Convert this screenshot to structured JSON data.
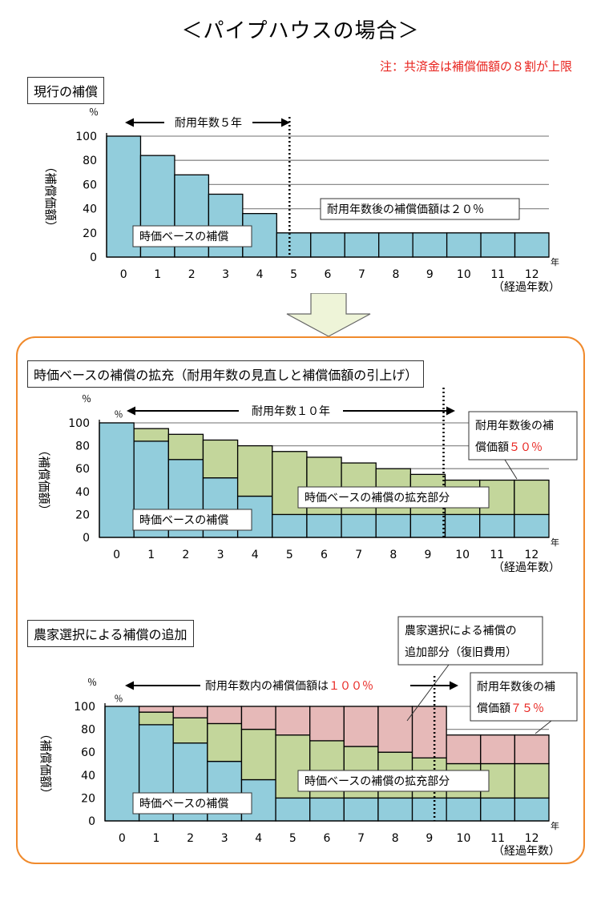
{
  "title": "＜パイプハウスの場合＞",
  "note": "注：共済金は補償価額の８割が上限",
  "arrow_color": "#eef4d8",
  "colors": {
    "base": "#92cddc",
    "expansion": "#c3d69b",
    "added": "#e6b9b8",
    "panel": "#f08a2c",
    "accent": "#e8231e"
  },
  "x_categories": [
    "0",
    "1",
    "2",
    "3",
    "4",
    "5",
    "6",
    "7",
    "8",
    "9",
    "10",
    "11",
    "12"
  ],
  "y_ticks": [
    "0",
    "20",
    "40",
    "60",
    "80",
    "100"
  ],
  "sections": {
    "current": {
      "title": "現行の補償"
    },
    "expansion": {
      "title": "時価ベースの補償の拡充（耐用年数の見直しと補償価額の引上げ）"
    },
    "added": {
      "title": "農家選択による補償の追加"
    }
  },
  "labels": {
    "percent": "％",
    "year_unit": "年",
    "elapsed": "（経過年数）",
    "ylabel": "（補償価額）",
    "base_legend": "時価ベースの補償",
    "expansion_legend": "時価ベースの補償の拡充部分",
    "life5": "耐用年数５年",
    "life10": "耐用年数１０年",
    "after20": "耐用年数後の補償価額は２０％",
    "after50_a": "耐用年数後の補",
    "after50_b": "償価額",
    "after50_val": "５０％",
    "within_text": "耐用年数内の補償価額は",
    "within_val": "１００％",
    "farmer_a": "農家選択による補償の",
    "farmer_b": "追加部分（復旧費用）",
    "after75_a": "耐用年数後の補",
    "after75_b": "償価額",
    "after75_val": "７５％"
  },
  "chart_data": [
    {
      "type": "bar",
      "title": "現行の補償",
      "xlabel": "（経過年数）",
      "ylabel": "（補償価額）",
      "categories": [
        "0",
        "1",
        "2",
        "3",
        "4",
        "5",
        "6",
        "7",
        "8",
        "9",
        "10",
        "11",
        "12"
      ],
      "ylim": [
        0,
        100
      ],
      "series": [
        {
          "name": "時価ベースの補償",
          "values": [
            100,
            84,
            68,
            52,
            36,
            20,
            20,
            20,
            20,
            20,
            20,
            20,
            20
          ]
        }
      ]
    },
    {
      "type": "bar",
      "title": "時価ベースの補償の拡充（耐用年数の見直しと補償価額の引上げ）",
      "xlabel": "（経過年数）",
      "ylabel": "（補償価額）",
      "categories": [
        "0",
        "1",
        "2",
        "3",
        "4",
        "5",
        "6",
        "7",
        "8",
        "9",
        "10",
        "11",
        "12"
      ],
      "ylim": [
        0,
        100
      ],
      "stacked": true,
      "series": [
        {
          "name": "時価ベースの補償",
          "values": [
            100,
            84,
            68,
            52,
            36,
            20,
            20,
            20,
            20,
            20,
            20,
            20,
            20
          ]
        },
        {
          "name": "時価ベースの補償の拡充部分",
          "values": [
            0,
            11,
            22,
            33,
            44,
            55,
            50,
            45,
            40,
            35,
            30,
            30,
            30
          ]
        }
      ]
    },
    {
      "type": "bar",
      "title": "農家選択による補償の追加",
      "xlabel": "（経過年数）",
      "ylabel": "（補償価額）",
      "categories": [
        "0",
        "1",
        "2",
        "3",
        "4",
        "5",
        "6",
        "7",
        "8",
        "9",
        "10",
        "11",
        "12"
      ],
      "ylim": [
        0,
        100
      ],
      "stacked": true,
      "series": [
        {
          "name": "時価ベースの補償",
          "values": [
            100,
            84,
            68,
            52,
            36,
            20,
            20,
            20,
            20,
            20,
            20,
            20,
            20
          ]
        },
        {
          "name": "時価ベースの補償の拡充部分",
          "values": [
            0,
            11,
            22,
            33,
            44,
            55,
            50,
            45,
            40,
            35,
            30,
            30,
            30
          ]
        },
        {
          "name": "農家選択による補償の追加部分（復旧費用）",
          "values": [
            0,
            5,
            10,
            15,
            20,
            25,
            30,
            35,
            40,
            45,
            25,
            25,
            25
          ]
        }
      ]
    }
  ]
}
